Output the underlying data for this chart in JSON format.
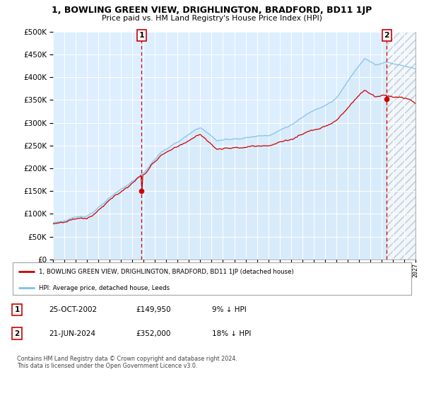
{
  "title": "1, BOWLING GREEN VIEW, DRIGHLINGTON, BRADFORD, BD11 1JP",
  "subtitle": "Price paid vs. HM Land Registry's House Price Index (HPI)",
  "legend_line1": "1, BOWLING GREEN VIEW, DRIGHLINGTON, BRADFORD, BD11 1JP (detached house)",
  "legend_line2": "HPI: Average price, detached house, Leeds",
  "annotation1_label": "1",
  "annotation1_date": "25-OCT-2002",
  "annotation1_price": "£149,950",
  "annotation1_hpi": "9% ↓ HPI",
  "annotation2_label": "2",
  "annotation2_date": "21-JUN-2024",
  "annotation2_price": "£352,000",
  "annotation2_hpi": "18% ↓ HPI",
  "footer1": "Contains HM Land Registry data © Crown copyright and database right 2024.",
  "footer2": "This data is licensed under the Open Government Licence v3.0.",
  "hpi_color": "#7bbfea",
  "hpi_fill_color": "#d6eaf8",
  "price_color": "#cc0000",
  "vline_color": "#cc0000",
  "ylim": [
    0,
    500000
  ],
  "yticks": [
    0,
    50000,
    100000,
    150000,
    200000,
    250000,
    300000,
    350000,
    400000,
    450000,
    500000
  ],
  "start_year": 1995.0,
  "end_year": 2027.0,
  "sale1_year": 2002.82,
  "sale1_value": 149950,
  "sale2_year": 2024.47,
  "sale2_value": 352000,
  "background_color": "#ffffff",
  "plot_bg_color": "#ddeeff"
}
